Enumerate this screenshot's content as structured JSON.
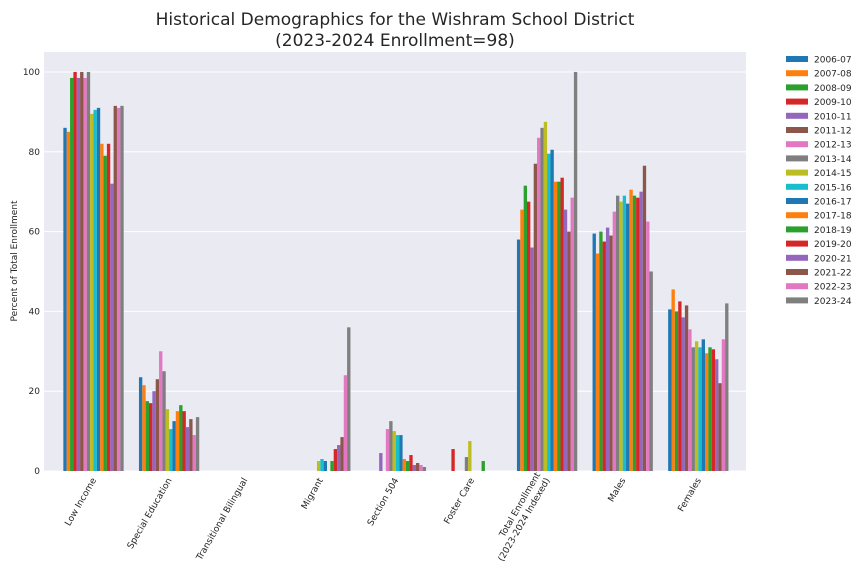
{
  "chart_data": {
    "type": "bar",
    "title": "Historical Demographics for the Wishram School District",
    "subtitle": "(2023-2024 Enrollment=98)",
    "xlabel": "",
    "ylabel": "Percent of Total Enrollment",
    "ylim": [
      0,
      105
    ],
    "yticks": [
      0,
      20,
      40,
      60,
      80,
      100
    ],
    "grid": true,
    "legend_position": "outside-right",
    "categories": [
      "Low Income",
      "Special Education",
      "Transitional Bilingual",
      "Migrant",
      "Section 504",
      "Foster Care",
      "Total Enrollment\n(2023-2024 Indexed)",
      "Males",
      "Females"
    ],
    "series": [
      {
        "name": "2006-07",
        "color": "#1f77b4",
        "values": [
          86,
          23.5,
          0,
          0,
          0,
          0,
          58,
          59.5,
          40.5
        ]
      },
      {
        "name": "2007-08",
        "color": "#ff7f0e",
        "values": [
          85,
          21.5,
          0,
          0,
          0,
          0,
          65.5,
          54.5,
          45.5
        ]
      },
      {
        "name": "2008-09",
        "color": "#2ca02c",
        "values": [
          98.5,
          17.5,
          0,
          0,
          0,
          0,
          71.5,
          60,
          40
        ]
      },
      {
        "name": "2009-10",
        "color": "#d62728",
        "values": [
          100,
          17,
          0,
          0,
          0,
          5.5,
          67.5,
          57.5,
          42.5
        ]
      },
      {
        "name": "2010-11",
        "color": "#9467bd",
        "values": [
          98.5,
          20,
          0,
          0,
          4.5,
          0,
          56,
          61,
          38.5
        ]
      },
      {
        "name": "2011-12",
        "color": "#8c564b",
        "values": [
          100,
          23,
          0,
          0,
          0,
          0,
          77,
          59,
          41.5
        ]
      },
      {
        "name": "2012-13",
        "color": "#e377c2",
        "values": [
          98.5,
          30,
          0,
          0,
          10.5,
          0,
          83.5,
          65,
          35.5
        ]
      },
      {
        "name": "2013-14",
        "color": "#7f7f7f",
        "values": [
          100,
          25,
          0,
          0,
          12.5,
          3.5,
          86,
          69,
          31
        ]
      },
      {
        "name": "2014-15",
        "color": "#bcbd22",
        "values": [
          89.5,
          15.5,
          0,
          2.5,
          10,
          7.5,
          87.5,
          67.5,
          32.5
        ]
      },
      {
        "name": "2015-16",
        "color": "#17becf",
        "values": [
          90.5,
          10.5,
          0,
          3,
          9,
          0,
          79.5,
          69,
          31
        ]
      },
      {
        "name": "2016-17",
        "color": "#1f77b4",
        "values": [
          91,
          12.5,
          0,
          2.5,
          9,
          0,
          80.5,
          67,
          33
        ]
      },
      {
        "name": "2017-18",
        "color": "#ff7f0e",
        "values": [
          82,
          15,
          0,
          0,
          3,
          0,
          72.5,
          70.5,
          29.5
        ]
      },
      {
        "name": "2018-19",
        "color": "#2ca02c",
        "values": [
          79,
          16.5,
          0,
          2.5,
          2.5,
          2.5,
          72.5,
          69,
          31
        ]
      },
      {
        "name": "2019-20",
        "color": "#d62728",
        "values": [
          82,
          15,
          0,
          5.5,
          4,
          0,
          73.5,
          68.5,
          30.5
        ]
      },
      {
        "name": "2020-21",
        "color": "#9467bd",
        "values": [
          72,
          11,
          0,
          6.5,
          1.5,
          0,
          65.5,
          70,
          28
        ]
      },
      {
        "name": "2021-22",
        "color": "#8c564b",
        "values": [
          91.5,
          13,
          0,
          8.5,
          2,
          0,
          60,
          76.5,
          22
        ]
      },
      {
        "name": "2022-23",
        "color": "#e377c2",
        "values": [
          91,
          9,
          0,
          24,
          1.5,
          0,
          68.5,
          62.5,
          33
        ]
      },
      {
        "name": "2023-24",
        "color": "#7f7f7f",
        "values": [
          91.5,
          13.5,
          0,
          36,
          1,
          0,
          100,
          50,
          42
        ]
      }
    ]
  }
}
